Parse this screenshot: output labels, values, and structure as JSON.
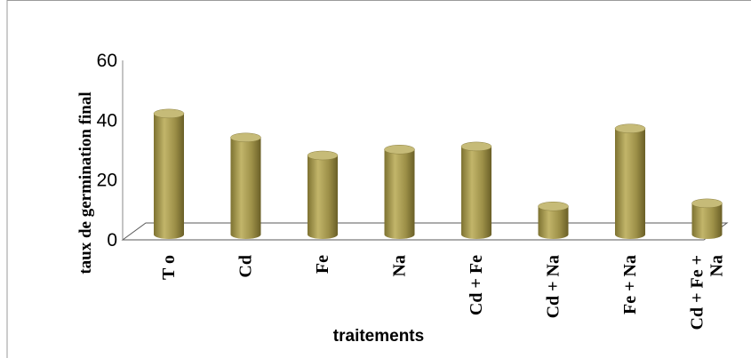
{
  "chart_data": {
    "type": "bar",
    "categories": [
      "T o",
      "Cd",
      "Fe",
      "Na",
      "Cd + Fe",
      "Cd + Na",
      "Fe + Na",
      "Cd + Fe + Na"
    ],
    "category_lines": [
      [
        "T o"
      ],
      [
        "Cd"
      ],
      [
        "Fe"
      ],
      [
        "Na"
      ],
      [
        "Cd + Fe"
      ],
      [
        "Cd + Na"
      ],
      [
        "Fe + Na"
      ],
      [
        "Cd + Fe +",
        "Na"
      ]
    ],
    "values": [
      44,
      36,
      30,
      32,
      33,
      13,
      39,
      14
    ],
    "title": "",
    "xlabel": "traitements",
    "ylabel": "taux de germination final",
    "ylim": [
      0,
      60
    ],
    "yticks": [
      0,
      20,
      40,
      60
    ],
    "grid": false,
    "legend": "none",
    "style": "3d-cylinder",
    "bar_color": "#a79b4e"
  }
}
